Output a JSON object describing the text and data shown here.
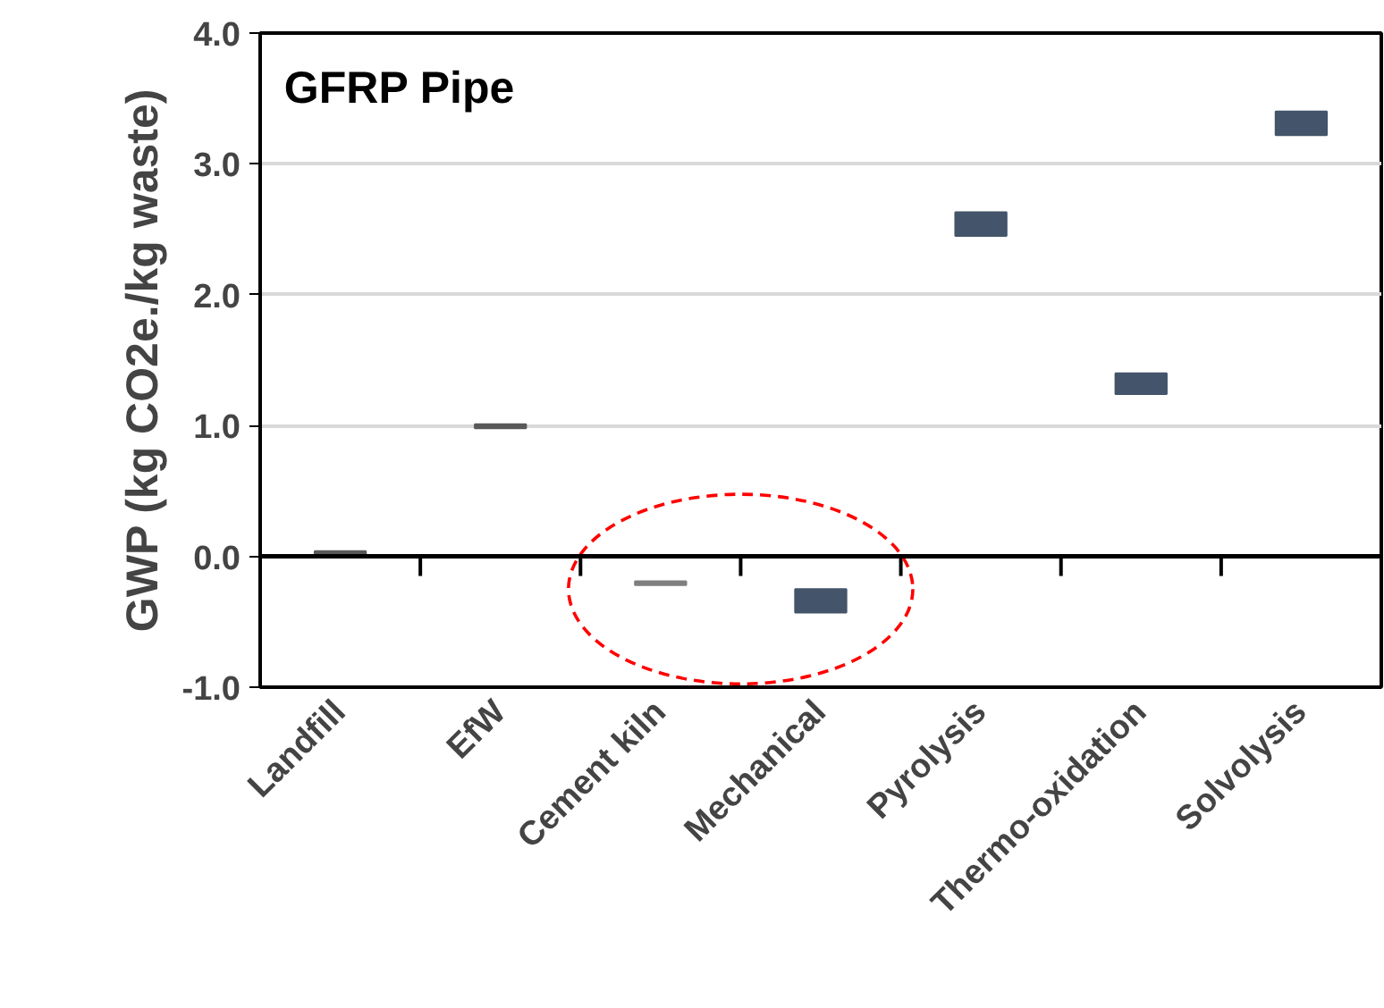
{
  "chart_data": {
    "type": "bar",
    "title": "GFRP Pipe",
    "ylabel": "GWP (kg CO2e./kg waste)",
    "categories": [
      "Landfill",
      "EfW",
      "Cement kiln",
      "Mechanical",
      "Pyrolysis",
      "Thermo-oxidation",
      "Solvolysis"
    ],
    "base": [
      0.0,
      0.98,
      -0.22,
      -0.43,
      2.45,
      1.24,
      3.22
    ],
    "values": [
      0.04,
      0.03,
      0.03,
      0.18,
      0.18,
      0.16,
      0.18
    ],
    "colors": [
      "#595959",
      "#595959",
      "#7f7f7f",
      "#44546a",
      "#44546a",
      "#44546a",
      "#44546a"
    ],
    "ylim": [
      -1.0,
      4.0
    ],
    "yticks": [
      {
        "value": -1,
        "label": "-1.0"
      },
      {
        "value": 0,
        "label": "0.0"
      },
      {
        "value": 1,
        "label": "1.0"
      },
      {
        "value": 2,
        "label": "2.0"
      },
      {
        "value": 3,
        "label": "3.0"
      },
      {
        "value": 4,
        "label": "4.0"
      }
    ],
    "grid": "y",
    "ref_lines": [
      {
        "axis": "y",
        "value": 0,
        "label": null,
        "color": "#000000"
      }
    ]
  }
}
